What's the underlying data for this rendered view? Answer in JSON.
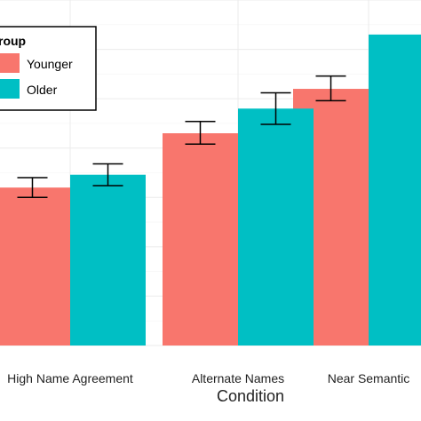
{
  "chart_data": {
    "type": "bar",
    "title": "",
    "xlabel": "Condition",
    "ylabel": "",
    "categories": [
      "High Name Agreement",
      "Alternate Names",
      "Near Semantic"
    ],
    "series": [
      {
        "name": "Younger",
        "color": "#F8766D",
        "values": [
          1.6,
          2.15,
          2.6
        ],
        "error_low": [
          1.5,
          2.04,
          2.48
        ],
        "error_high": [
          1.7,
          2.27,
          2.73
        ]
      },
      {
        "name": "Older",
        "color": "#00BFC4",
        "values": [
          1.73,
          2.4,
          3.15
        ],
        "error_low": [
          1.62,
          2.24,
          null
        ],
        "error_high": [
          1.84,
          2.56,
          null
        ]
      }
    ],
    "ylim": [
      0,
      3.5
    ],
    "grid": true,
    "legend": {
      "title": "roup",
      "placement": "top-left",
      "entries": [
        "Younger",
        "Older"
      ]
    }
  }
}
